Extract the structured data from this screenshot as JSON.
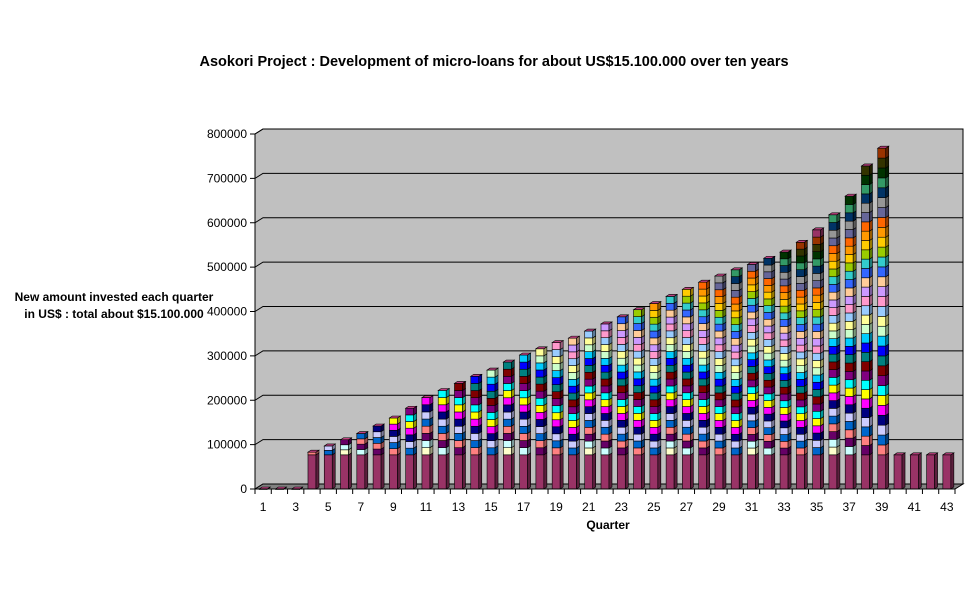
{
  "chart_data": {
    "type": "bar",
    "title": "Asokori Project : Development of micro-loans for about US$15.100.000 over ten years",
    "xlabel": "Quarter",
    "ylabel": "New amount invested each quarter in US$ : total about $15.100.000",
    "ylim": [
      0,
      800000
    ],
    "yticks": [
      "0",
      "100000",
      "200000",
      "300000",
      "400000",
      "500000",
      "600000",
      "700000",
      "800000"
    ],
    "xtick_labels": [
      "1",
      "3",
      "5",
      "7",
      "9",
      "11",
      "13",
      "15",
      "17",
      "19",
      "21",
      "23",
      "25",
      "27",
      "29",
      "31",
      "33",
      "35",
      "37",
      "39",
      "41",
      "43"
    ],
    "stacked": true,
    "three_d": true,
    "grid": true,
    "legend": "none",
    "plot_background": "#c0c0c0",
    "base_segment_color": "#993366",
    "segment_colors": [
      "#993366",
      "#FFFFCC",
      "#CCFFFF",
      "#660066",
      "#FF8080",
      "#0066CC",
      "#CCCCFF",
      "#000080",
      "#FF00FF",
      "#FFFF00",
      "#00FFFF",
      "#800080",
      "#800000",
      "#008080",
      "#0000FF",
      "#00CCFF",
      "#CCFFCC",
      "#FFFF99",
      "#99CCFF",
      "#FF99CC",
      "#CC99FF",
      "#FFCC99",
      "#3366FF",
      "#33CCCC",
      "#99CC00",
      "#FFCC00",
      "#FF9900",
      "#FF6600",
      "#666699",
      "#969696",
      "#003366",
      "#339966",
      "#003300",
      "#333300",
      "#993300"
    ],
    "categories": [
      1,
      2,
      3,
      4,
      5,
      6,
      7,
      8,
      9,
      10,
      11,
      12,
      13,
      14,
      15,
      16,
      17,
      18,
      19,
      20,
      21,
      22,
      23,
      24,
      25,
      26,
      27,
      28,
      29,
      30,
      31,
      32,
      33,
      34,
      35,
      36,
      37,
      38,
      39,
      40,
      41,
      42,
      43
    ],
    "totals": [
      0,
      0,
      0,
      83000,
      97000,
      111000,
      125000,
      142000,
      160000,
      182000,
      206000,
      222000,
      238000,
      254000,
      268000,
      286000,
      302000,
      316000,
      330000,
      340000,
      356000,
      372000,
      388000,
      404000,
      418000,
      434000,
      450000,
      466000,
      480000,
      494000,
      506000,
      520000,
      534000,
      556000,
      584000,
      618000,
      660000,
      728000,
      768000,
      77000,
      77000,
      77000,
      77000
    ],
    "segments_per_quarter": [
      0,
      0,
      0,
      2,
      3,
      4,
      5,
      6,
      7,
      8,
      9,
      10,
      11,
      12,
      13,
      14,
      15,
      16,
      17,
      18,
      19,
      20,
      21,
      22,
      23,
      24,
      25,
      26,
      27,
      28,
      29,
      30,
      31,
      32,
      32,
      32,
      32,
      32,
      32,
      1,
      1,
      1,
      1
    ]
  }
}
